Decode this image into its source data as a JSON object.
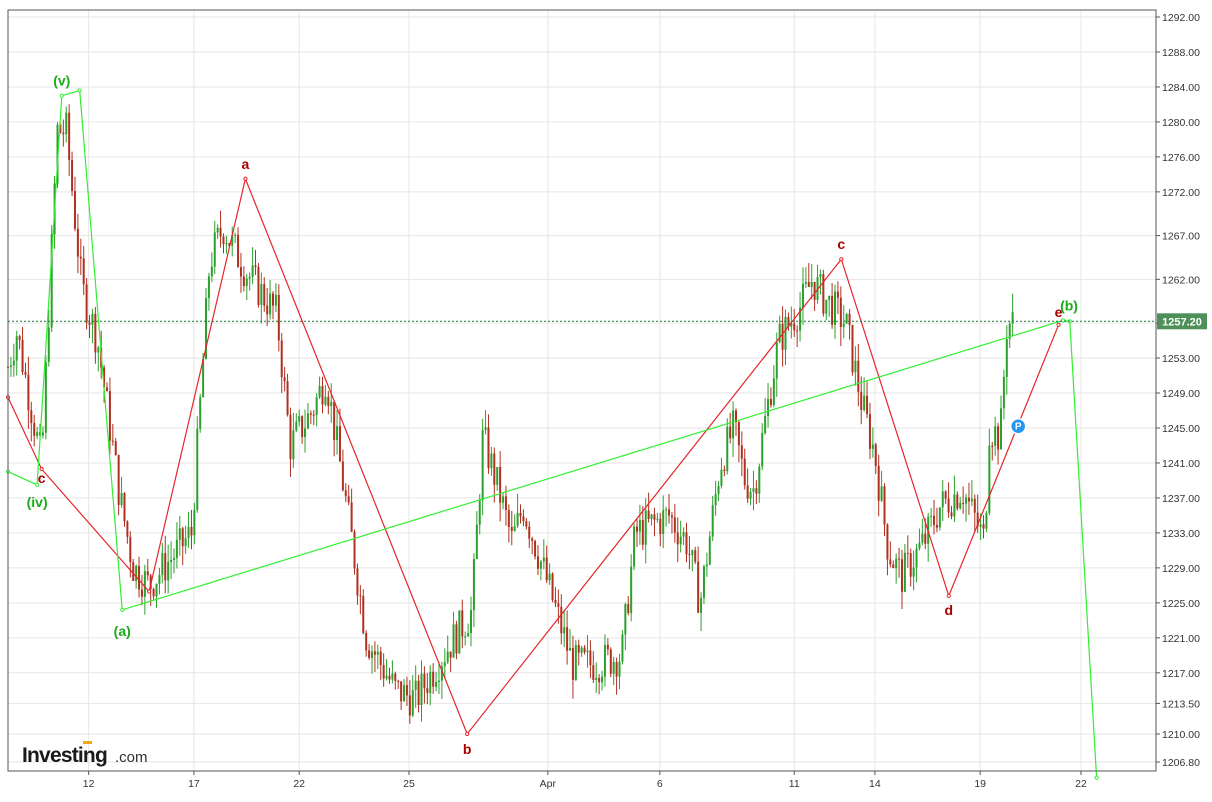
{
  "chart_data": {
    "type": "candlestick-elliott-wave",
    "title": "",
    "xlabel": "",
    "ylabel": "",
    "y_ticks": [
      "1292.00",
      "1288.00",
      "1284.00",
      "1280.00",
      "1276.00",
      "1272.00",
      "1267.00",
      "1262.00",
      "1257.00",
      "1253.00",
      "1249.00",
      "1245.00",
      "1241.00",
      "1237.00",
      "1233.00",
      "1229.00",
      "1225.00",
      "1221.00",
      "1217.00",
      "1213.50",
      "1210.00",
      "1206.80"
    ],
    "x_ticks": [
      "12",
      "17",
      "22",
      "25",
      "Apr",
      "6",
      "11",
      "14",
      "19",
      "22"
    ],
    "ylim": [
      1204.5,
      1293.5
    ],
    "grid": true,
    "current_price": 1257.2,
    "current_price_label": "1257.20",
    "current_price_color": "#1f7a3a",
    "bull_color": "#2ca02c",
    "bear_color": "#b03020",
    "red_wave_color": "#e8242c",
    "green_wave_color": "#33ee33",
    "wave_label_red": "#a80000",
    "wave_label_green": "#1aaa1a",
    "red_wave_points": [
      {
        "x": 0,
        "y": 1248.5
      },
      {
        "x": 1.5,
        "y": 1240.3,
        "label": "c"
      },
      {
        "x": 6.3,
        "y": 1226.3
      },
      {
        "x": 10.6,
        "y": 1273.5,
        "label": "a"
      },
      {
        "x": 20.5,
        "y": 1210.0,
        "label": "b"
      },
      {
        "x": 37.2,
        "y": 1264.3,
        "label": "c"
      },
      {
        "x": 42.0,
        "y": 1225.8,
        "label": "d"
      },
      {
        "x": 46.9,
        "y": 1256.8,
        "label": "e"
      }
    ],
    "green_wave_points": [
      {
        "x": 0,
        "y": 1240.0
      },
      {
        "x": 1.3,
        "y": 1238.5,
        "label": "(iv)"
      },
      {
        "x": 2.4,
        "y": 1283.0,
        "label": "(v)"
      },
      {
        "x": 3.2,
        "y": 1283.6
      },
      {
        "x": 5.1,
        "y": 1224.2,
        "label": "(a)"
      },
      {
        "x": 47.1,
        "y": 1257.3,
        "label": "(b)"
      },
      {
        "x": 47.4,
        "y": 1257.2
      },
      {
        "x": 48.6,
        "y": 1205.0
      }
    ],
    "pivot_marker": {
      "x": 45.1,
      "y": 1245.2,
      "label": "P"
    }
  },
  "branding": {
    "logo_main": "Investing",
    "logo_suffix": ".com"
  }
}
